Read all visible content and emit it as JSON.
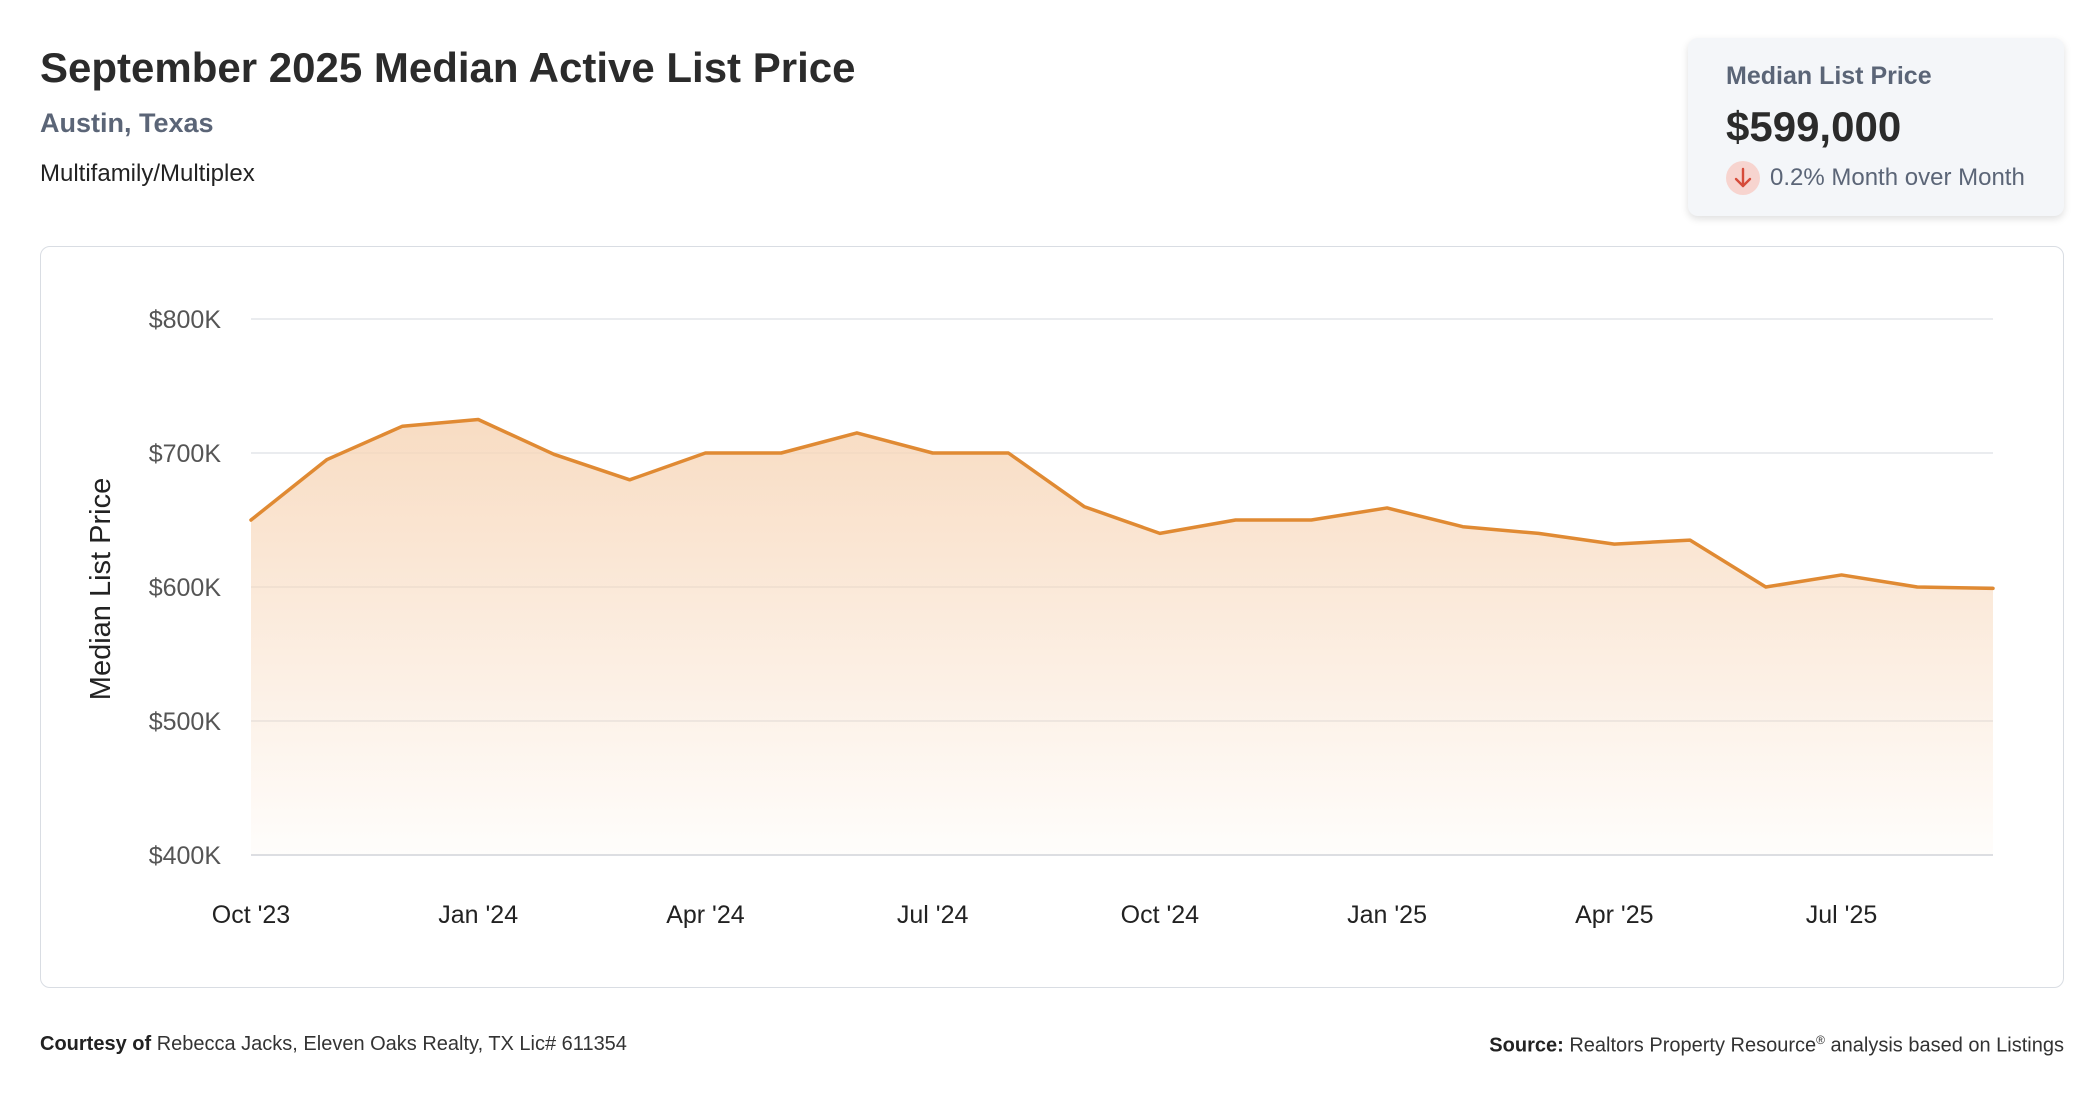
{
  "header": {
    "title": "September 2025 Median Active List Price",
    "location": "Austin, Texas",
    "property_type": "Multifamily/Multiplex"
  },
  "stat_card": {
    "label": "Median List Price",
    "value": "$599,000",
    "change_text": "0.2% Month over Month",
    "direction_icon": "arrow-down-icon"
  },
  "chart_data": {
    "type": "area",
    "ylabel": "Median List Price",
    "xlabel": "",
    "ylim": [
      400000,
      800000
    ],
    "yticks": [
      400000,
      500000,
      600000,
      700000,
      800000
    ],
    "ytick_labels": [
      "$400K",
      "$500K",
      "$600K",
      "$700K",
      "$800K"
    ],
    "xtick_labels": [
      "Oct '23",
      "Jan '24",
      "Apr '24",
      "Jul '24",
      "Oct '24",
      "Jan '25",
      "Apr '25",
      "Jul '25"
    ],
    "x": [
      "Oct '23",
      "Nov '23",
      "Dec '23",
      "Jan '24",
      "Feb '24",
      "Mar '24",
      "Apr '24",
      "May '24",
      "Jun '24",
      "Jul '24",
      "Aug '24",
      "Sep '24",
      "Oct '24",
      "Nov '24",
      "Dec '24",
      "Jan '25",
      "Feb '25",
      "Mar '25",
      "Apr '25",
      "May '25",
      "Jun '25",
      "Jul '25",
      "Aug '25",
      "Sep '25"
    ],
    "values": [
      650000,
      695000,
      720000,
      725000,
      699000,
      680000,
      700000,
      700000,
      715000,
      700000,
      700000,
      660000,
      640000,
      650000,
      650000,
      659000,
      645000,
      640000,
      632000,
      635000,
      600000,
      609000,
      600000,
      599000
    ],
    "grid": true,
    "line_color": "#e08a33",
    "fill_color": "#f7d6b8"
  },
  "footer": {
    "courtesy_label": "Courtesy of",
    "courtesy_text": "Rebecca Jacks, Eleven Oaks Realty, TX Lic# 611354",
    "source_label": "Source:",
    "source_text_1": "Realtors Property Resource",
    "source_sup": "®",
    "source_text_2": " analysis based on Listings"
  }
}
